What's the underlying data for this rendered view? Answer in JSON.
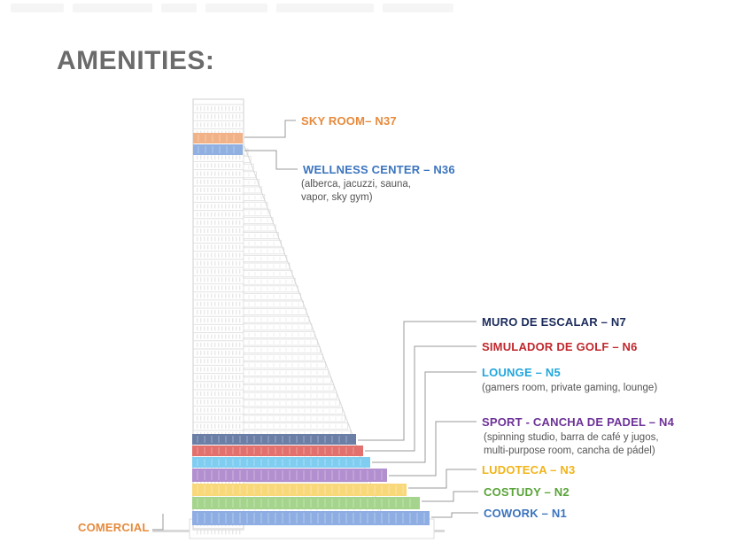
{
  "title": "AMENITIES:",
  "amenities": [
    {
      "id": "sky-room",
      "name": "SKY ROOM– N37",
      "color": "#e68a3c",
      "band": "#f2b287",
      "details": []
    },
    {
      "id": "wellness-center",
      "name": "WELLNESS CENTER – N36",
      "color": "#3b74be",
      "band": "#8fb0e0",
      "details": [
        "(alberca, jacuzzi, sauna,",
        "vapor, sky gym)"
      ]
    },
    {
      "id": "muro-de-escalar",
      "name": "MURO DE ESCALAR – N7",
      "color": "#1c2c5c",
      "band": "#6a7ea6",
      "details": []
    },
    {
      "id": "simulador-de-golf",
      "name": "SIMULADOR DE GOLF – N6",
      "color": "#c0272d",
      "band": "#e2706d",
      "details": []
    },
    {
      "id": "lounge",
      "name": "LOUNGE – N5",
      "color": "#22a6dc",
      "band": "#7fcdf0",
      "details": [
        "(gamers room, private gaming,  lounge)"
      ]
    },
    {
      "id": "sport",
      "name": "SPORT - CANCHA DE PADEL – N4",
      "color": "#6d3297",
      "band": "#b28fcf",
      "details": [
        "(spinning studio, barra de café y jugos,",
        "multi-purpose room, cancha de pádel)"
      ]
    },
    {
      "id": "ludoteca",
      "name": "LUDOTECA – N3",
      "color": "#f2b418",
      "band": "#f9d87a",
      "details": []
    },
    {
      "id": "costudy",
      "name": "COSTUDY – N2",
      "color": "#5aa43a",
      "band": "#a5d48d",
      "details": []
    },
    {
      "id": "cowork",
      "name": "COWORK – N1",
      "color": "#3b74be",
      "band": "#8eaee3",
      "details": []
    },
    {
      "id": "comercial",
      "name": "COMERCIAL",
      "color": "#e68a3c",
      "band": "",
      "details": []
    }
  ]
}
